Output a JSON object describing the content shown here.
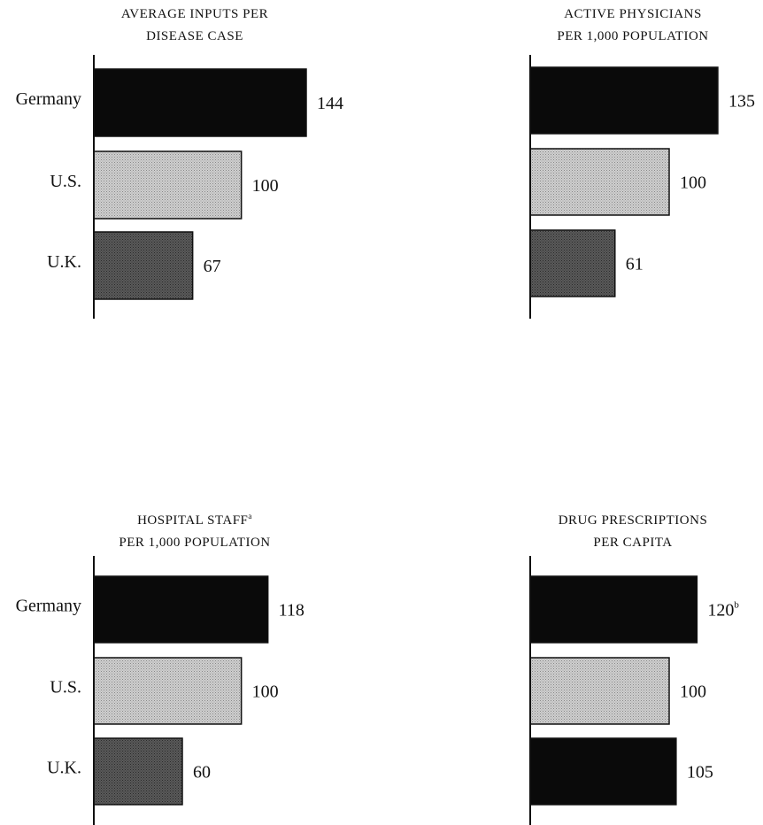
{
  "chart_data": [
    {
      "type": "bar",
      "orientation": "horizontal",
      "title_lines": [
        "AVERAGE INPUTS PER",
        "DISEASE CASE"
      ],
      "title_sup": "",
      "categories": [
        "Germany",
        "U.S.",
        "U.K."
      ],
      "values": [
        144,
        100,
        67
      ],
      "value_labels": [
        "144",
        "100",
        "67"
      ],
      "value_sups": [
        "",
        "",
        ""
      ],
      "fills": [
        "black",
        "light",
        "dark"
      ],
      "show_categories": true
    },
    {
      "type": "bar",
      "orientation": "horizontal",
      "title_lines": [
        "ACTIVE PHYSICIANS",
        "PER 1,000 POPULATION"
      ],
      "title_sup": "",
      "categories": [
        "Germany",
        "U.S.",
        "U.K."
      ],
      "values": [
        135,
        100,
        61
      ],
      "value_labels": [
        "135",
        "100",
        "61"
      ],
      "value_sups": [
        "",
        "",
        ""
      ],
      "fills": [
        "black",
        "light",
        "dark"
      ],
      "show_categories": false
    },
    {
      "type": "bar",
      "orientation": "horizontal",
      "title_lines": [
        "HOSPITAL STAFF",
        "PER 1,000 POPULATION"
      ],
      "title_sup": "a",
      "categories": [
        "Germany",
        "U.S.",
        "U.K."
      ],
      "values": [
        118,
        100,
        60
      ],
      "value_labels": [
        "118",
        "100",
        "60"
      ],
      "value_sups": [
        "",
        "",
        ""
      ],
      "fills": [
        "black",
        "light",
        "dark"
      ],
      "show_categories": true
    },
    {
      "type": "bar",
      "orientation": "horizontal",
      "title_lines": [
        "DRUG PRESCRIPTIONS",
        "PER CAPITA"
      ],
      "title_sup": "",
      "categories": [
        "Germany",
        "U.S.",
        "U.K."
      ],
      "values": [
        120,
        100,
        105
      ],
      "value_labels": [
        "120",
        "100",
        "105"
      ],
      "value_sups": [
        "b",
        "",
        ""
      ],
      "fills": [
        "black",
        "light",
        "black"
      ],
      "show_categories": false
    }
  ],
  "colors": {
    "black": "#0a0a0a",
    "light": "#cfcfcf",
    "dark": "#5a5a5a",
    "axis": "#111111"
  }
}
